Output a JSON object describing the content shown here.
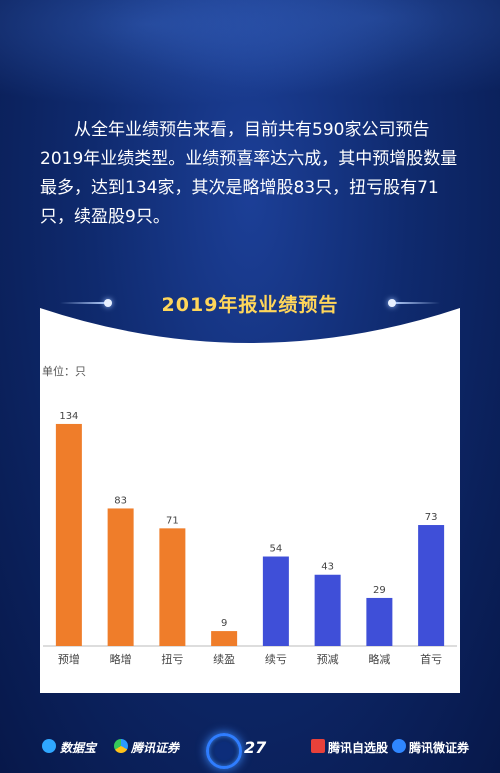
{
  "intro_text": "从全年业绩预告来看，目前共有590家公司预告2019年业绩类型。业绩预喜率达六成，其中预增股数量最多，达到134家，其次是略增股83只，扭亏股有71只，续盈股9只。",
  "chart_data": {
    "type": "bar",
    "title": "2019年报业绩预告",
    "unit_label": "单位：只",
    "categories": [
      "预增",
      "略增",
      "扭亏",
      "续盈",
      "续亏",
      "预减",
      "略减",
      "首亏"
    ],
    "values": [
      134,
      83,
      71,
      9,
      54,
      43,
      29,
      73
    ],
    "bar_colors": [
      "#ef7d2a",
      "#ef7d2a",
      "#ef7d2a",
      "#ef7d2a",
      "#3f4fd8",
      "#3f4fd8",
      "#3f4fd8",
      "#3f4fd8"
    ],
    "ylim": [
      0,
      140
    ],
    "grid": false
  },
  "footer": {
    "logo_left_1": "数据宝",
    "logo_left_2": "腾讯证券",
    "page_number": "27",
    "logo_right_1": "腾讯自选股",
    "logo_right_2": "腾讯微证券"
  },
  "colors": {
    "accent_title": "#ffd65a",
    "positive_bar": "#ef7d2a",
    "negative_bar": "#3f4fd8"
  }
}
